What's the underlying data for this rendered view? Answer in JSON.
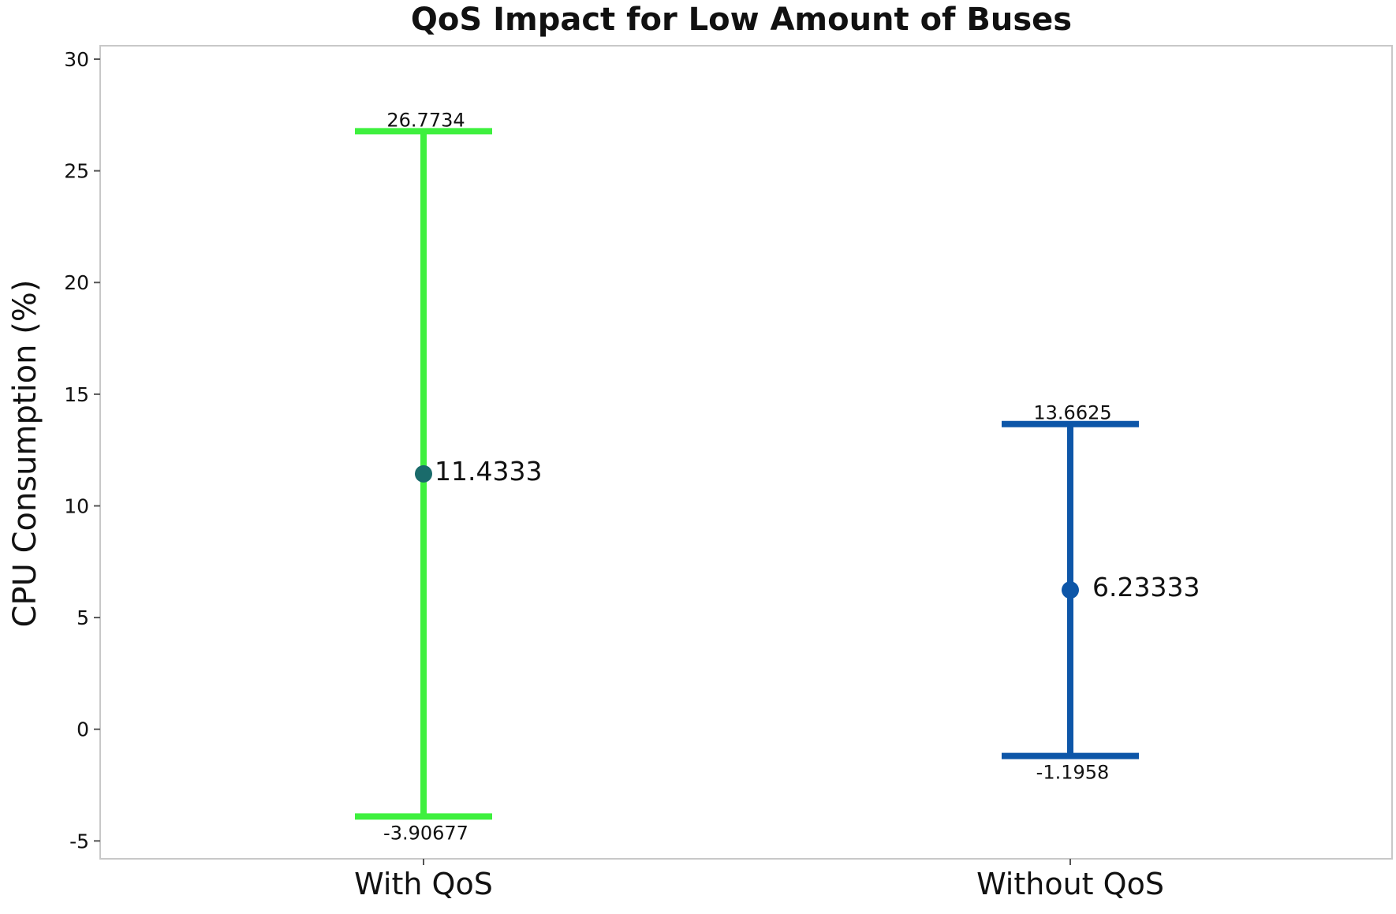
{
  "chart_data": {
    "type": "scatter",
    "title": "QoS Impact for Low Amount of Buses",
    "ylabel": "CPU Consumption (%)",
    "xlabel": "",
    "ylim": [
      -5.8,
      30.6
    ],
    "y_ticks": [
      "30",
      "25",
      "20",
      "15",
      "10",
      "5",
      "0",
      "-5"
    ],
    "y_tick_values": [
      30,
      25,
      20,
      15,
      10,
      5,
      0,
      -5
    ],
    "grid": false,
    "categories": [
      "With QoS",
      "Without QoS"
    ],
    "intervals": [
      {
        "category": "With QoS",
        "mean": 11.4333,
        "upper": 26.7734,
        "lower": -3.90677,
        "mean_label": "11.4333",
        "upper_label": "26.7734",
        "lower_label": "-3.90677",
        "line_color": "#3ef03e",
        "point_color": "#1a6b6b"
      },
      {
        "category": "Without QoS",
        "mean": 6.23333,
        "upper": 13.6625,
        "lower": -1.1958,
        "mean_label": "6.23333",
        "upper_label": "13.6625",
        "lower_label": "-1.1958",
        "line_color": "#0d56a8",
        "point_color": "#0d56a8"
      }
    ]
  }
}
